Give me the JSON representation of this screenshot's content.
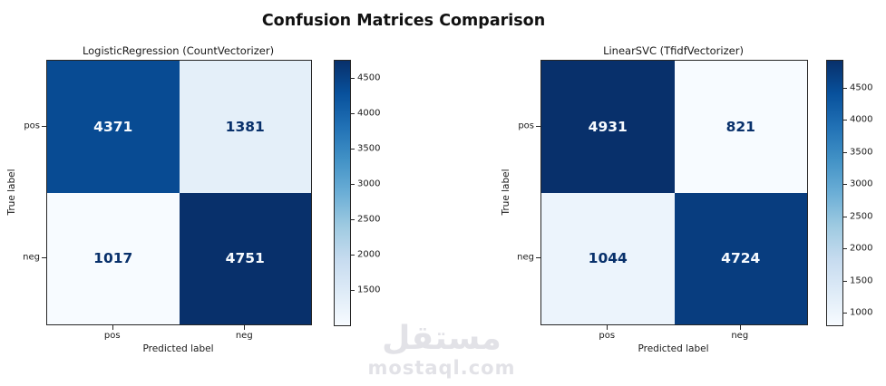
{
  "figure": {
    "title": "Confusion Matrices Comparison"
  },
  "watermark": {
    "arabic": "مستقل",
    "domain": "mostaql.com"
  },
  "chart_data": [
    {
      "type": "heatmap",
      "title": "LogisticRegression (CountVectorizer)",
      "xlabel": "Predicted label",
      "ylabel": "True label",
      "x_categories": [
        "pos",
        "neg"
      ],
      "y_categories": [
        "pos",
        "neg"
      ],
      "values": [
        [
          4371,
          1381
        ],
        [
          1017,
          4751
        ]
      ],
      "vmin": 1017,
      "vmax": 4751,
      "colormap": "Blues",
      "colorbar_ticks": [
        1500,
        2000,
        2500,
        3000,
        3500,
        4000,
        4500
      ],
      "legend_position": "right-colorbar",
      "grid": false
    },
    {
      "type": "heatmap",
      "title": "LinearSVC (TfidfVectorizer)",
      "xlabel": "Predicted label",
      "ylabel": "True label",
      "x_categories": [
        "pos",
        "neg"
      ],
      "y_categories": [
        "pos",
        "neg"
      ],
      "values": [
        [
          4931,
          821
        ],
        [
          1044,
          4724
        ]
      ],
      "vmin": 821,
      "vmax": 4931,
      "colormap": "Blues",
      "colorbar_ticks": [
        1000,
        1500,
        2000,
        2500,
        3000,
        3500,
        4000,
        4500
      ],
      "legend_position": "right-colorbar",
      "grid": false
    }
  ],
  "colors": {
    "blues_anchors": [
      "#f7fbff",
      "#deebf7",
      "#c6dbef",
      "#9ecae1",
      "#6baed6",
      "#4292c6",
      "#2171b5",
      "#08519c",
      "#08306b"
    ],
    "cell_text_light": "#f7fbff",
    "cell_text_dark": "#08306b",
    "axes_edge": "#262626",
    "watermark": "#e2e2e7"
  }
}
